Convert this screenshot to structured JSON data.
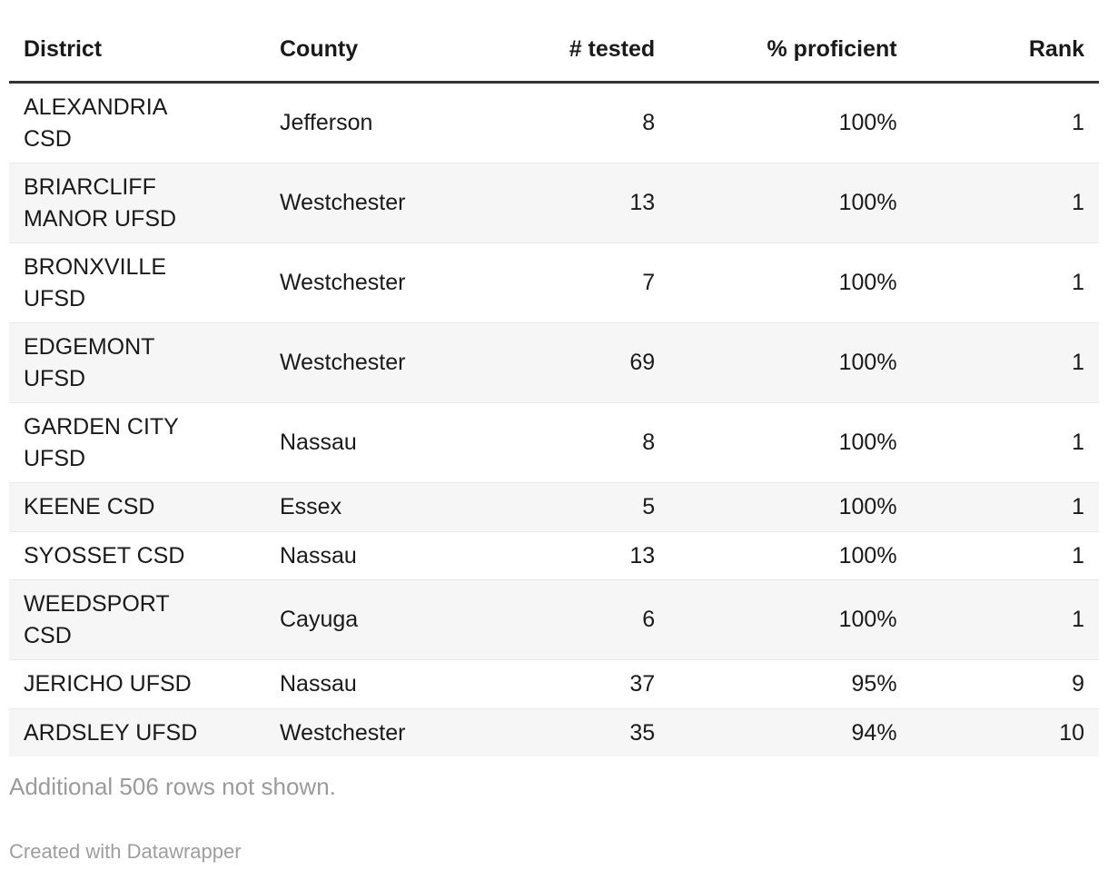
{
  "chart_data": {
    "type": "table",
    "columns": [
      "District",
      "County",
      "# tested",
      "% proficient",
      "Rank"
    ],
    "column_align": [
      "left",
      "left",
      "right",
      "right",
      "right"
    ],
    "rows": [
      {
        "district": "ALEXANDRIA\nCSD",
        "county": "Jefferson",
        "tested": "8",
        "proficient": "100%",
        "rank": "1"
      },
      {
        "district": "BRIARCLIFF\nMANOR UFSD",
        "county": "Westchester",
        "tested": "13",
        "proficient": "100%",
        "rank": "1"
      },
      {
        "district": "BRONXVILLE\nUFSD",
        "county": "Westchester",
        "tested": "7",
        "proficient": "100%",
        "rank": "1"
      },
      {
        "district": "EDGEMONT\nUFSD",
        "county": "Westchester",
        "tested": "69",
        "proficient": "100%",
        "rank": "1"
      },
      {
        "district": "GARDEN CITY\nUFSD",
        "county": "Nassau",
        "tested": "8",
        "proficient": "100%",
        "rank": "1"
      },
      {
        "district": "KEENE CSD",
        "county": "Essex",
        "tested": "5",
        "proficient": "100%",
        "rank": "1"
      },
      {
        "district": "SYOSSET CSD",
        "county": "Nassau",
        "tested": "13",
        "proficient": "100%",
        "rank": "1"
      },
      {
        "district": "WEEDSPORT\nCSD",
        "county": "Cayuga",
        "tested": "6",
        "proficient": "100%",
        "rank": "1"
      },
      {
        "district": "JERICHO UFSD",
        "county": "Nassau",
        "tested": "37",
        "proficient": "95%",
        "rank": "9"
      },
      {
        "district": "ARDSLEY UFSD",
        "county": "Westchester",
        "tested": "35",
        "proficient": "94%",
        "rank": "10"
      }
    ],
    "footnote": "Additional 506 rows not shown.",
    "attribution": "Created with Datawrapper",
    "layout_hints": {
      "zebra_striping": true,
      "header_rule": true
    }
  },
  "colors": {
    "text": "#1a1a1a",
    "header_rule": "#333333",
    "row_stripe": "#f6f6f6",
    "row_separator": "#e9e9e9",
    "muted_text": "#9b9b9b",
    "background": "#ffffff"
  }
}
